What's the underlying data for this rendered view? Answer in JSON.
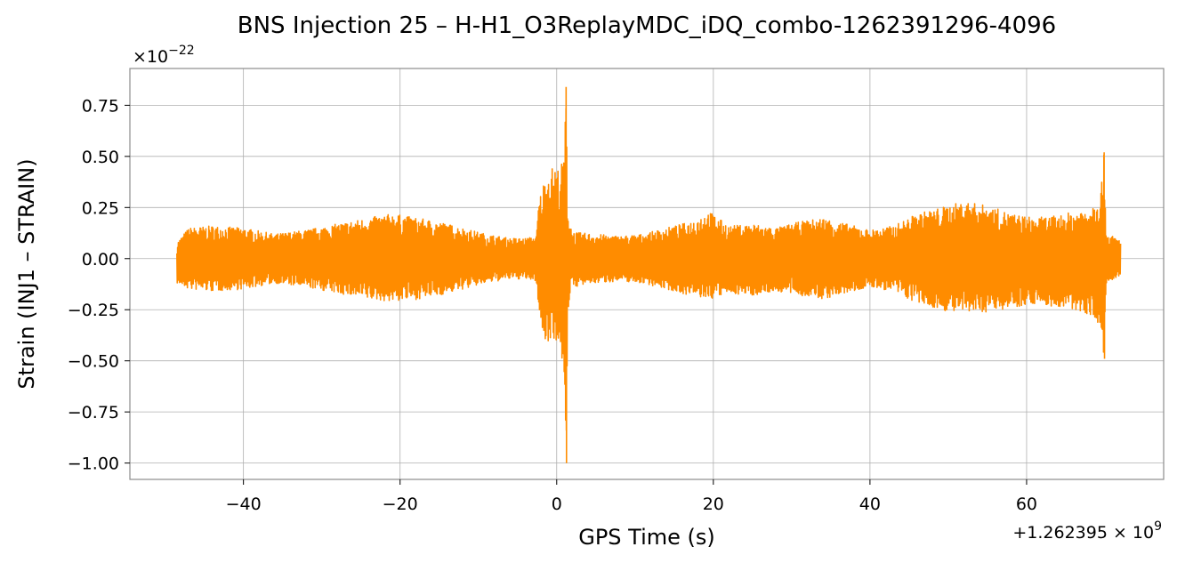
{
  "chart_data": {
    "type": "line",
    "title": "BNS Injection 25 – H-H1_O3ReplayMDC_iDQ_combo-1262391296-4096",
    "xlabel": "GPS Time (s)",
    "ylabel": "Strain (INJ1 – STRAIN)",
    "x_offset_label": "+1.262395 × 10^9",
    "x_offset_text": "+1.262395",
    "x_offset_base": "× 10",
    "x_offset_exp": "9",
    "y_scale_text": "×10",
    "y_scale_exp": "−22",
    "xlim": [
      -54.5,
      77.5
    ],
    "ylim": [
      -1.08,
      0.93
    ],
    "x_ticks": [
      -40,
      -20,
      0,
      20,
      40,
      60
    ],
    "x_tick_labels": [
      "−40",
      "−20",
      "0",
      "20",
      "40",
      "60"
    ],
    "y_ticks": [
      0.75,
      0.5,
      0.25,
      0.0,
      -0.25,
      -0.5,
      -0.75,
      -1.0
    ],
    "y_tick_labels": [
      "0.75",
      "0.50",
      "0.25",
      "0.00",
      "−0.25",
      "−0.50",
      "−0.75",
      "−1.00"
    ],
    "grid": true,
    "series": [
      {
        "color": "#ff8c00",
        "envelope": {
          "x": [
            -48.5,
            -47,
            -44,
            -40,
            -36,
            -32,
            -28,
            -24,
            -21,
            -18,
            -15,
            -12,
            -9,
            -6,
            -4,
            -2.6,
            -2.3,
            -1.5,
            -0.5,
            0.5,
            1.0,
            1.2,
            1.4,
            2,
            5,
            8,
            11,
            14,
            17,
            19.5,
            22,
            25,
            28,
            31,
            34,
            37,
            40,
            43,
            46,
            49,
            52,
            55,
            58,
            61,
            64,
            67,
            68.5,
            69.5,
            69.9,
            70.2,
            71,
            72
          ],
          "upper": [
            0.08,
            0.15,
            0.16,
            0.15,
            0.12,
            0.14,
            0.17,
            0.2,
            0.22,
            0.2,
            0.18,
            0.15,
            0.12,
            0.1,
            0.1,
            0.11,
            0.28,
            0.4,
            0.45,
            0.44,
            0.55,
            0.84,
            0.25,
            0.13,
            0.12,
            0.11,
            0.12,
            0.15,
            0.18,
            0.23,
            0.16,
            0.17,
            0.15,
            0.18,
            0.2,
            0.17,
            0.14,
            0.16,
            0.22,
            0.25,
            0.28,
            0.26,
            0.22,
            0.2,
            0.21,
            0.24,
            0.27,
            0.35,
            0.52,
            0.12,
            0.11,
            0.09
          ],
          "lower": [
            -0.12,
            -0.15,
            -0.16,
            -0.15,
            -0.12,
            -0.14,
            -0.17,
            -0.2,
            -0.21,
            -0.2,
            -0.18,
            -0.15,
            -0.12,
            -0.1,
            -0.1,
            -0.11,
            -0.26,
            -0.42,
            -0.38,
            -0.45,
            -0.6,
            -1.0,
            -0.26,
            -0.14,
            -0.12,
            -0.11,
            -0.12,
            -0.15,
            -0.18,
            -0.2,
            -0.17,
            -0.18,
            -0.16,
            -0.18,
            -0.2,
            -0.17,
            -0.14,
            -0.16,
            -0.22,
            -0.25,
            -0.27,
            -0.26,
            -0.24,
            -0.22,
            -0.24,
            -0.26,
            -0.28,
            -0.38,
            -0.49,
            -0.12,
            -0.11,
            -0.09
          ]
        }
      }
    ]
  }
}
